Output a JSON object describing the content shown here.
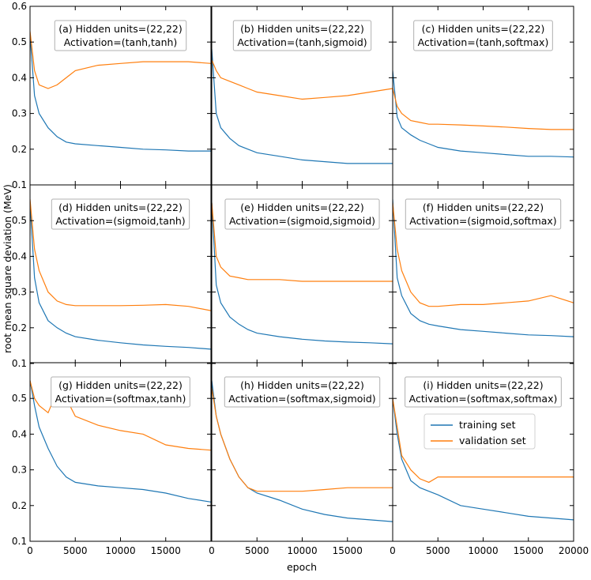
{
  "figure": {
    "ylabel": "root mean square deviation (MeV)",
    "xlabel": "epoch"
  },
  "legend": {
    "placement": "inside panel (i), center-right",
    "entries": [
      {
        "label": "training set",
        "color": "#1f77b4"
      },
      {
        "label": "validation set",
        "color": "#ff7f0e"
      }
    ]
  },
  "chart_data": {
    "type": "line",
    "layout": "3x3 grid with shared axes",
    "xlim": [
      0,
      20000
    ],
    "ylim": [
      0.1,
      0.6
    ],
    "x_ticks": [
      0,
      5000,
      10000,
      15000,
      20000
    ],
    "y_ticks": [
      0.1,
      0.2,
      0.3,
      0.4,
      0.5,
      0.6
    ],
    "x_tick_labels": [
      "0",
      "5000",
      "10000",
      "15000",
      "20000"
    ],
    "y_tick_labels": [
      "0.1",
      "0.2",
      "0.3",
      "0.4",
      "0.5",
      "0.6"
    ],
    "x_samples": [
      0,
      500,
      1000,
      2000,
      3000,
      4000,
      5000,
      7500,
      10000,
      12500,
      15000,
      17500,
      20000
    ],
    "panels": [
      {
        "id": "a",
        "line1": "(a) Hidden units=(22,22)",
        "line2": "Activation=(tanh,tanh)",
        "series": [
          {
            "name": "training set",
            "values": [
              0.52,
              0.35,
              0.3,
              0.26,
              0.235,
              0.22,
              0.215,
              0.21,
              0.205,
              0.2,
              0.198,
              0.195,
              0.195
            ]
          },
          {
            "name": "validation set",
            "values": [
              0.53,
              0.42,
              0.38,
              0.37,
              0.38,
              0.4,
              0.42,
              0.435,
              0.44,
              0.445,
              0.445,
              0.445,
              0.44
            ]
          }
        ]
      },
      {
        "id": "b",
        "line1": "(b) Hidden units=(22,22)",
        "line2": "Activation=(tanh,sigmoid)",
        "series": [
          {
            "name": "training set",
            "values": [
              0.48,
              0.3,
              0.26,
              0.23,
              0.21,
              0.2,
              0.19,
              0.18,
              0.17,
              0.165,
              0.16,
              0.16,
              0.16
            ]
          },
          {
            "name": "validation set",
            "values": [
              0.45,
              0.42,
              0.4,
              0.39,
              0.38,
              0.37,
              0.36,
              0.35,
              0.34,
              0.345,
              0.35,
              0.36,
              0.37
            ]
          }
        ]
      },
      {
        "id": "c",
        "line1": "(c) Hidden units=(22,22)",
        "line2": "Activation=(tanh,softmax)",
        "series": [
          {
            "name": "training set",
            "values": [
              0.42,
              0.29,
              0.26,
              0.24,
              0.225,
              0.215,
              0.205,
              0.195,
              0.19,
              0.185,
              0.18,
              0.18,
              0.178
            ]
          },
          {
            "name": "validation set",
            "values": [
              0.37,
              0.32,
              0.3,
              0.28,
              0.275,
              0.27,
              0.27,
              0.268,
              0.265,
              0.262,
              0.258,
              0.255,
              0.255
            ]
          }
        ]
      },
      {
        "id": "d",
        "line1": "(d) Hidden units=(22,22)",
        "line2": "Activation=(sigmoid,tanh)",
        "series": [
          {
            "name": "training set",
            "values": [
              0.55,
              0.34,
              0.27,
              0.22,
              0.2,
              0.185,
              0.175,
              0.165,
              0.158,
              0.152,
              0.148,
              0.145,
              0.14
            ]
          },
          {
            "name": "validation set",
            "values": [
              0.56,
              0.42,
              0.36,
              0.3,
              0.275,
              0.265,
              0.262,
              0.262,
              0.262,
              0.263,
              0.265,
              0.26,
              0.248
            ]
          }
        ]
      },
      {
        "id": "e",
        "line1": "(e) Hidden units=(22,22)",
        "line2": "Activation=(sigmoid,sigmoid)",
        "series": [
          {
            "name": "training set",
            "values": [
              0.55,
              0.32,
              0.27,
              0.23,
              0.21,
              0.195,
              0.185,
              0.175,
              0.168,
              0.163,
              0.16,
              0.158,
              0.155
            ]
          },
          {
            "name": "validation set",
            "values": [
              0.55,
              0.4,
              0.37,
              0.345,
              0.34,
              0.335,
              0.335,
              0.335,
              0.33,
              0.33,
              0.33,
              0.33,
              0.33
            ]
          }
        ]
      },
      {
        "id": "f",
        "line1": "(f) Hidden units=(22,22)",
        "line2": "Activation=(sigmoid,softmax)",
        "series": [
          {
            "name": "training set",
            "values": [
              0.56,
              0.34,
              0.29,
              0.24,
              0.22,
              0.21,
              0.205,
              0.195,
              0.19,
              0.185,
              0.18,
              0.178,
              0.175
            ]
          },
          {
            "name": "validation set",
            "values": [
              0.55,
              0.42,
              0.36,
              0.3,
              0.27,
              0.26,
              0.26,
              0.265,
              0.265,
              0.27,
              0.275,
              0.29,
              0.27
            ]
          }
        ]
      },
      {
        "id": "g",
        "line1": "(g) Hidden units=(22,22)",
        "line2": "Activation=(softmax,tanh)",
        "series": [
          {
            "name": "training set",
            "values": [
              0.55,
              0.48,
              0.42,
              0.36,
              0.31,
              0.28,
              0.265,
              0.255,
              0.25,
              0.245,
              0.235,
              0.22,
              0.21
            ]
          },
          {
            "name": "validation set",
            "values": [
              0.55,
              0.5,
              0.48,
              0.46,
              0.52,
              0.5,
              0.45,
              0.425,
              0.41,
              0.4,
              0.37,
              0.36,
              0.355
            ]
          }
        ]
      },
      {
        "id": "h",
        "line1": "(h) Hidden units=(22,22)",
        "line2": "Activation=(softmax,sigmoid)",
        "series": [
          {
            "name": "training set",
            "values": [
              0.55,
              0.45,
              0.4,
              0.33,
              0.28,
              0.25,
              0.235,
              0.215,
              0.19,
              0.175,
              0.165,
              0.16,
              0.155
            ]
          },
          {
            "name": "validation set",
            "values": [
              0.53,
              0.45,
              0.4,
              0.33,
              0.28,
              0.25,
              0.24,
              0.24,
              0.24,
              0.245,
              0.25,
              0.25,
              0.25
            ]
          }
        ]
      },
      {
        "id": "i",
        "line1": "(i) Hidden units=(22,22)",
        "line2": "Activation=(softmax,softmax)",
        "series": [
          {
            "name": "training set",
            "values": [
              0.5,
              0.4,
              0.33,
              0.27,
              0.25,
              0.24,
              0.23,
              0.2,
              0.19,
              0.18,
              0.17,
              0.165,
              0.16
            ]
          },
          {
            "name": "validation set",
            "values": [
              0.5,
              0.42,
              0.34,
              0.3,
              0.275,
              0.265,
              0.28,
              0.28,
              0.28,
              0.28,
              0.28,
              0.28,
              0.28
            ]
          }
        ]
      }
    ]
  }
}
